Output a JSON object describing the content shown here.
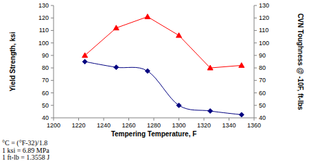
{
  "chart_data": {
    "type": "line",
    "x_label": "Tempering Temperature, F",
    "y_label": "Yield Strength, ksi",
    "y2_label": "CVN Toughness @ -10F, ft-lbs",
    "x": [
      1225,
      1250,
      1275,
      1300,
      1325,
      1350
    ],
    "series": [
      {
        "color": "#000080",
        "marker": "diamond",
        "line_style": "smooth",
        "values": [
          85,
          80.5,
          77.5,
          50,
          45.5,
          42.5
        ]
      },
      {
        "color": "#ff0000",
        "marker": "triangle",
        "line_style": "solid",
        "axis": "y2",
        "values": [
          90,
          112,
          121,
          106,
          80,
          82
        ]
      }
    ],
    "xlim": [
      1200,
      1360
    ],
    "xticks": [
      1200,
      1220,
      1240,
      1260,
      1280,
      1300,
      1320,
      1340,
      1360
    ],
    "ylim": [
      40,
      130
    ],
    "yticks": [
      40,
      50,
      60,
      70,
      80,
      90,
      100,
      110,
      120,
      130
    ],
    "y2lim": [
      40,
      130
    ],
    "y2ticks": [
      40,
      50,
      60,
      70,
      80,
      90,
      100,
      110,
      120,
      130
    ],
    "grid": false,
    "annotations": [
      "°C = (°F-32)/1.8",
      "1 ksi = 6.89 MPa",
      "1 ft-lb = 1.3558 J"
    ]
  }
}
